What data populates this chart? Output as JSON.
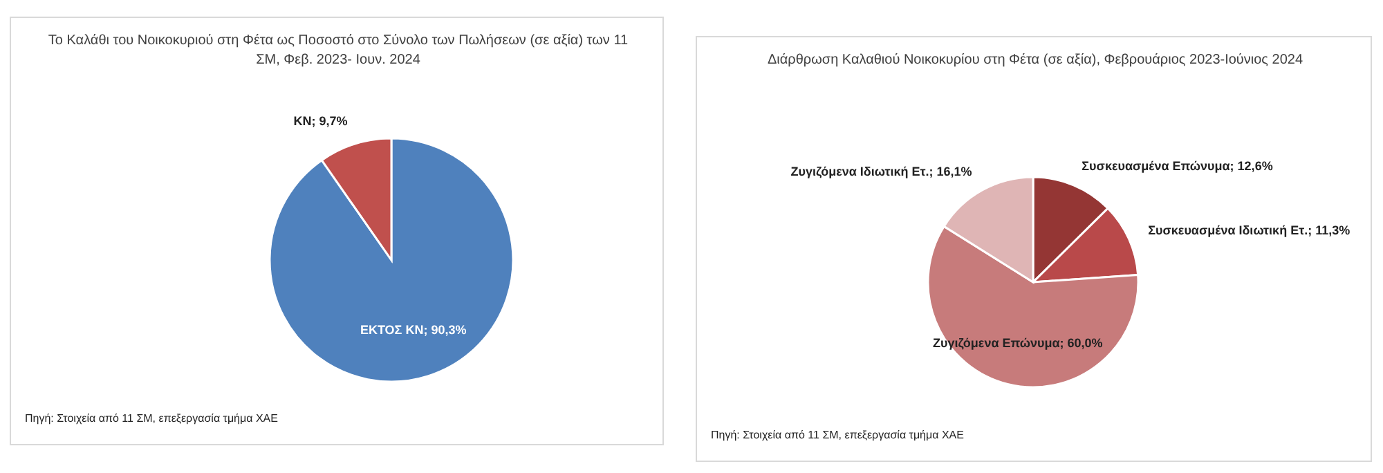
{
  "chart_data": [
    {
      "type": "pie",
      "title": "Το Καλάθι του Νοικοκυριού στη Φέτα ως Ποσοστό στο Σύνολο των Πωλήσεων (σε αξία) των 11 ΣΜ, Φεβ. 2023- Ιουν. 2024",
      "categories": [
        "ΕΚΤΟΣ ΚΝ",
        "ΚΝ"
      ],
      "values": [
        90.3,
        9.7
      ],
      "value_labels": [
        "90,3%",
        "9,7%"
      ],
      "colors": [
        "#4f81bd",
        "#c0504d"
      ],
      "annotations": [
        "Πηγή: Στοιχεία από 11 ΣΜ, επεξεργασία τμήμα ΧΑΕ"
      ]
    },
    {
      "type": "pie",
      "title": "Διάρθρωση Καλαθιού Νοικοκυρίου στη Φέτα (σε αξία), Φεβρουάριος 2023-Ιούνιος 2024",
      "categories": [
        "Συσκευασμένα Επώνυμα",
        "Συσκευασμένα Ιδιωτική Ετ.",
        "Ζυγιζόμενα  Επώνυμα",
        "Ζυγιζόμενα  Ιδιωτική Ετ."
      ],
      "values": [
        12.6,
        11.3,
        60.0,
        16.1
      ],
      "value_labels": [
        "12,6%",
        "11,3%",
        "60,0%",
        "16,1%"
      ],
      "colors": [
        "#943634",
        "#b9494a",
        "#c77b7b",
        "#dfb5b5"
      ],
      "annotations": [
        "Πηγή: Στοιχεία από 11 ΣΜ, επεξεργασία τμήμα ΧΑΕ"
      ]
    }
  ]
}
